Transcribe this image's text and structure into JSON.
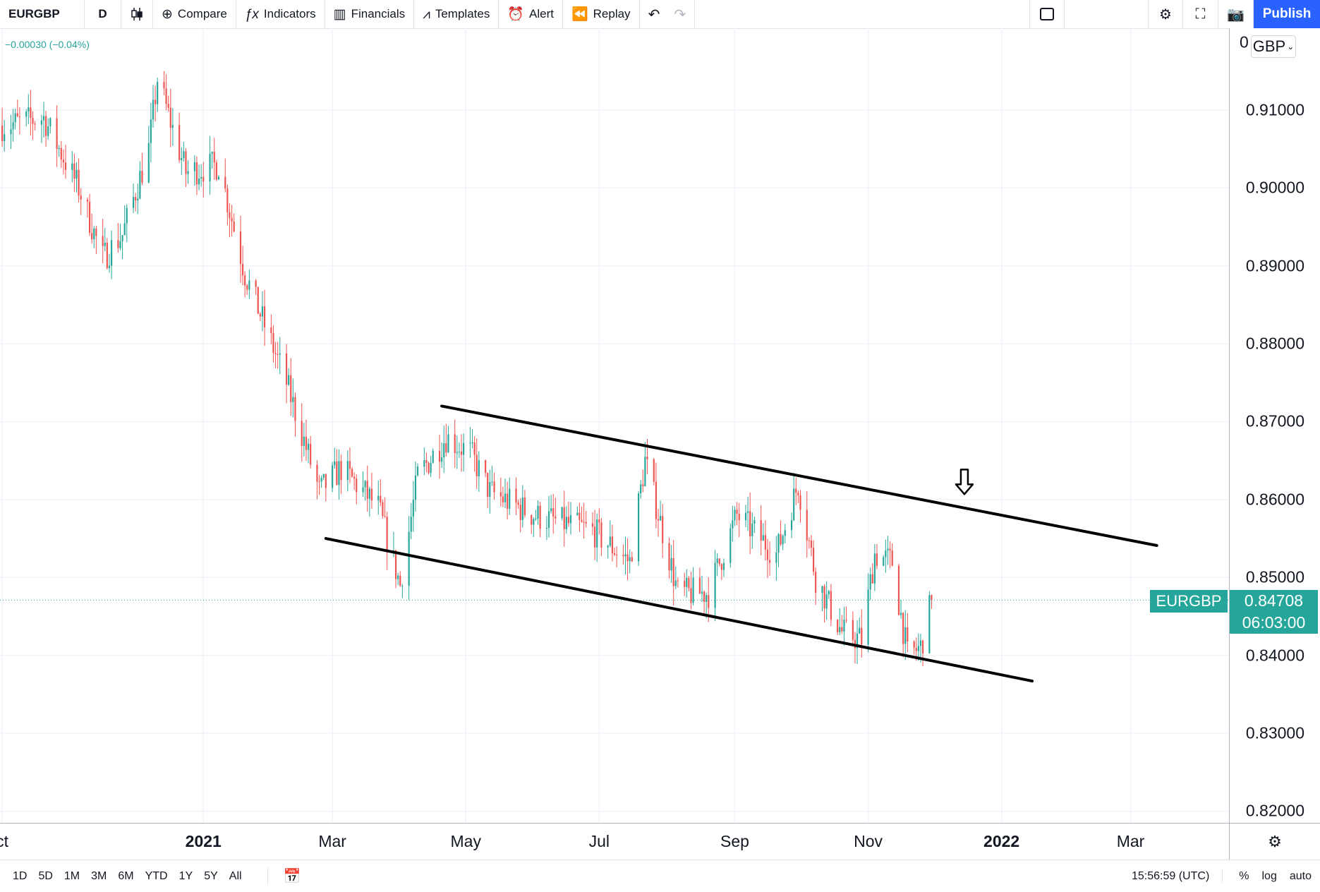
{
  "toolbar": {
    "symbol": "EURGBP",
    "interval": "D",
    "candle_icon": "candles-icon",
    "compare_icon": "⊕",
    "compare": "Compare",
    "indicators_icon": "ƒx",
    "indicators": "Indicators",
    "financials_icon": "▥",
    "financials": "Financials",
    "templates_icon": "⩘",
    "templates": "Templates",
    "alert_icon": "⏰",
    "alert": "Alert",
    "replay_icon": "⏪",
    "replay": "Replay",
    "undo_icon": "↶",
    "redo_icon": "↷",
    "settings_icon": "⚙",
    "fullscreen_icon": "⛶",
    "snapshot_icon": "📷",
    "publish": "Publish"
  },
  "legend": {
    "change": "−0.00030 (−0.04%)"
  },
  "currency_selector": {
    "value": "GBP"
  },
  "price_tag": {
    "symbol": "EURGBP",
    "price": "0.84708",
    "countdown": "06:03:00"
  },
  "bottom": {
    "ranges": [
      "1D",
      "5D",
      "1M",
      "3M",
      "6M",
      "YTD",
      "1Y",
      "5Y",
      "All"
    ],
    "goto_icon": "📅",
    "clock": "15:56:59 (UTC)",
    "percent": "%",
    "log": "log",
    "auto": "auto",
    "axis_settings_icon": "⚙"
  },
  "chart_data": {
    "type": "candlestick",
    "symbol": "EURGBP",
    "interval": "D",
    "currency": "GBP",
    "y_tick_labels": [
      "0.82000",
      "0.83000",
      "0.84000",
      "0.85000",
      "0.86000",
      "0.87000",
      "0.88000",
      "0.89000",
      "0.90000",
      "0.91000"
    ],
    "y_tick_values": [
      0.82,
      0.83,
      0.84,
      0.85,
      0.86,
      0.87,
      0.88,
      0.89,
      0.9,
      0.91
    ],
    "partial_top_label": "0",
    "ylim": [
      0.8185,
      0.9205
    ],
    "x_tick_labels": [
      {
        "label": "ct",
        "date": "2020-10-01",
        "year": false
      },
      {
        "label": "2021",
        "date": "2021-01-01",
        "year": true
      },
      {
        "label": "Mar",
        "date": "2021-03-01",
        "year": false
      },
      {
        "label": "May",
        "date": "2021-05-01",
        "year": false
      },
      {
        "label": "Jul",
        "date": "2021-07-01",
        "year": false
      },
      {
        "label": "Sep",
        "date": "2021-09-01",
        "year": false
      },
      {
        "label": "Nov",
        "date": "2021-11-01",
        "year": false
      },
      {
        "label": "2022",
        "date": "2022-01-01",
        "year": true
      },
      {
        "label": "Mar",
        "date": "2022-03-01",
        "year": false
      }
    ],
    "xlim": [
      "2020-09-30",
      "2022-04-15"
    ],
    "last_price": 0.84708,
    "price_path": [
      {
        "date": "2020-10-01",
        "close": 0.908
      },
      {
        "date": "2020-10-20",
        "close": 0.909
      },
      {
        "date": "2020-11-05",
        "close": 0.9
      },
      {
        "date": "2020-11-16",
        "close": 0.891
      },
      {
        "date": "2020-11-25",
        "close": 0.894
      },
      {
        "date": "2020-12-07",
        "close": 0.905
      },
      {
        "date": "2020-12-11",
        "close": 0.914
      },
      {
        "date": "2020-12-24",
        "close": 0.902
      },
      {
        "date": "2021-01-08",
        "close": 0.903
      },
      {
        "date": "2021-01-20",
        "close": 0.889
      },
      {
        "date": "2021-02-08",
        "close": 0.875
      },
      {
        "date": "2021-02-23",
        "close": 0.861
      },
      {
        "date": "2021-03-05",
        "close": 0.864
      },
      {
        "date": "2021-03-22",
        "close": 0.859
      },
      {
        "date": "2021-04-01",
        "close": 0.849
      },
      {
        "date": "2021-04-09",
        "close": 0.863
      },
      {
        "date": "2021-04-22",
        "close": 0.868
      },
      {
        "date": "2021-05-03",
        "close": 0.866
      },
      {
        "date": "2021-05-12",
        "close": 0.861
      },
      {
        "date": "2021-06-01",
        "close": 0.858
      },
      {
        "date": "2021-06-28",
        "close": 0.856
      },
      {
        "date": "2021-07-15",
        "close": 0.852
      },
      {
        "date": "2021-07-22",
        "close": 0.865
      },
      {
        "date": "2021-08-06",
        "close": 0.848
      },
      {
        "date": "2021-08-20",
        "close": 0.848
      },
      {
        "date": "2021-09-02",
        "close": 0.858
      },
      {
        "date": "2021-09-20",
        "close": 0.853
      },
      {
        "date": "2021-09-30",
        "close": 0.862
      },
      {
        "date": "2021-10-08",
        "close": 0.85
      },
      {
        "date": "2021-10-20",
        "close": 0.843
      },
      {
        "date": "2021-10-29",
        "close": 0.842
      },
      {
        "date": "2021-11-04",
        "close": 0.853
      },
      {
        "date": "2021-11-12",
        "close": 0.852
      },
      {
        "date": "2021-11-19",
        "close": 0.84
      },
      {
        "date": "2021-11-25",
        "close": 0.841
      },
      {
        "date": "2021-11-30",
        "close": 0.847
      }
    ],
    "channel_lines": [
      {
        "name": "upper",
        "from": {
          "date": "2021-04-20",
          "price": 0.872
        },
        "to": {
          "date": "2022-03-13",
          "price": 0.8541
        }
      },
      {
        "name": "lower",
        "from": {
          "date": "2021-02-26",
          "price": 0.855
        },
        "to": {
          "date": "2022-01-15",
          "price": 0.8367
        }
      }
    ],
    "annotation": {
      "type": "down-arrow",
      "date": "2021-12-15",
      "price": 0.8605
    },
    "colors": {
      "up": "#26a69a",
      "down": "#ef5350",
      "line": "#000000",
      "grid": "#f0f3fa"
    },
    "grid": true
  }
}
